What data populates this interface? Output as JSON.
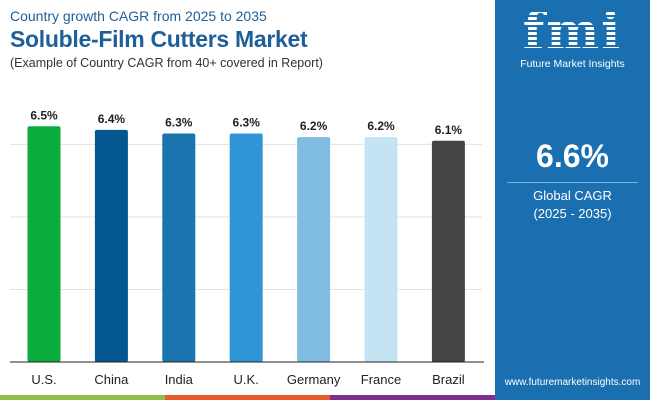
{
  "header": {
    "supertitle": "Country growth CAGR from 2025 to 2035",
    "title": "Soluble-Film Cutters Market",
    "subtitle": "(Example of Country CAGR from 40+ covered in Report)"
  },
  "panel": {
    "logo_text": "fmi",
    "logo_name": "Future Market Insights",
    "global_value": "6.6%",
    "global_label": "Global CAGR",
    "global_period": "(2025 - 2035)",
    "url": "www.futuremarketinsights.com",
    "bg_color": "#1a6fb0"
  },
  "chart_data": {
    "type": "bar",
    "categories": [
      "U.S.",
      "China",
      "India",
      "U.K.",
      "Germany",
      "France",
      "Brazil"
    ],
    "values": [
      6.5,
      6.4,
      6.3,
      6.3,
      6.2,
      6.2,
      6.1
    ],
    "labels": [
      "6.5%",
      "6.4%",
      "6.3%",
      "6.3%",
      "6.2%",
      "6.2%",
      "6.1%"
    ],
    "colors": [
      "#0aad3b",
      "#03588f",
      "#1a75ae",
      "#2f95d6",
      "#7fbbe2",
      "#c4e3f3",
      "#444444"
    ],
    "unit": "%",
    "ylim": [
      0,
      7.5
    ],
    "grid": true,
    "title": "",
    "xlabel": "",
    "ylabel": ""
  }
}
